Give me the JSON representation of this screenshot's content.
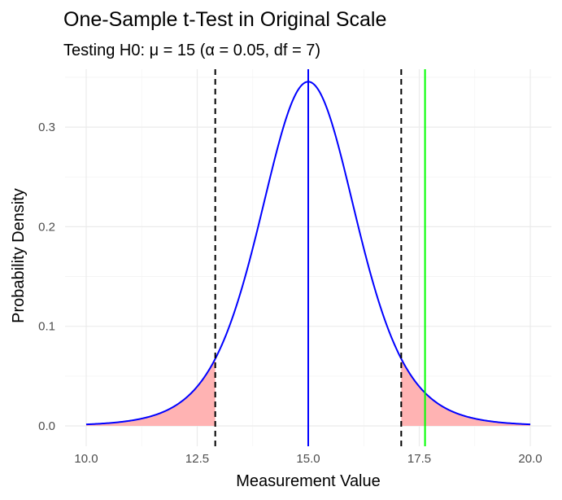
{
  "chart_data": {
    "type": "line",
    "title": "One-Sample t-Test in Original Scale",
    "subtitle": "Testing H0: μ = 15 (α = 0.05, df = 7)",
    "xlabel": "Measurement Value",
    "ylabel": "Probability Density",
    "xlim": [
      10,
      20
    ],
    "ylim": [
      0,
      0.35
    ],
    "x_ticks": [
      10.0,
      12.5,
      15.0,
      17.5,
      20.0
    ],
    "x_tick_labels": [
      "10.0",
      "12.5",
      "15.0",
      "17.5",
      "20.0"
    ],
    "y_ticks": [
      0.0,
      0.1,
      0.2,
      0.3
    ],
    "y_tick_labels": [
      "0.0",
      "0.1",
      "0.2",
      "0.3"
    ],
    "grid": true,
    "distribution": {
      "family": "t",
      "df": 7,
      "center": 15,
      "scale": 1.114,
      "peak_density": 0.342
    },
    "curve_color": "#0000ff",
    "rejection_region_color": "#ffb3b3",
    "rejection_regions": [
      [
        10,
        12.906
      ],
      [
        17.094,
        20
      ]
    ],
    "vlines": [
      {
        "x": 12.906,
        "style": "dashed",
        "color": "#000000"
      },
      {
        "x": 17.094,
        "style": "dashed",
        "color": "#000000"
      },
      {
        "x": 15.0,
        "style": "solid",
        "color": "#0000ff"
      },
      {
        "x": 17.63,
        "style": "solid",
        "color": "#00ff00"
      }
    ]
  }
}
